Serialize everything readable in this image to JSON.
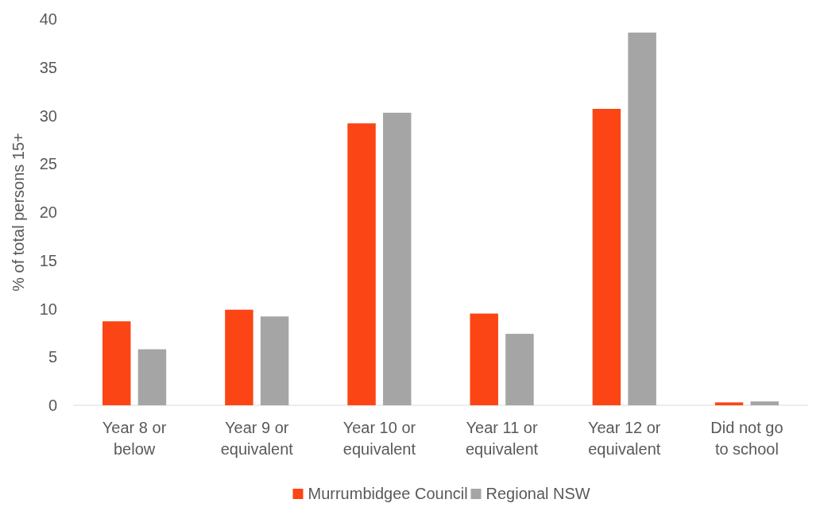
{
  "chart_data": {
    "type": "bar",
    "ylabel": "% of total persons 15+",
    "categories": [
      "Year 8 or below",
      "Year 9 or equivalent",
      "Year 10 or equivalent",
      "Year 11 or equivalent",
      "Year 12 or equivalent",
      "Did not go to school"
    ],
    "series": [
      {
        "name": "Murrumbidgee Council",
        "color": "#fc4515",
        "values": [
          8.7,
          9.9,
          29.2,
          9.5,
          30.7,
          0.3
        ]
      },
      {
        "name": "Regional NSW",
        "color": "#a5a5a5",
        "values": [
          5.8,
          9.2,
          30.3,
          7.4,
          38.6,
          0.4
        ]
      }
    ],
    "ylim": [
      0,
      40
    ],
    "yticks": [
      0,
      5,
      10,
      15,
      20,
      25,
      30,
      35,
      40
    ],
    "grid": false,
    "legend": "bottom"
  }
}
